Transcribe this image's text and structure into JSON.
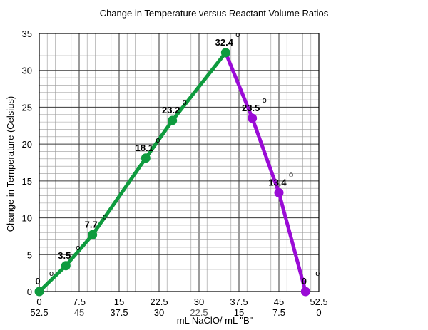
{
  "chart_data": {
    "type": "line",
    "title": "Change in Temperature versus Reactant Volume Ratios",
    "xlabel": "mL NaClO/ mL \"B\"",
    "ylabel": "Change in Temperature (Celsius)",
    "x_ticks_top": [
      "0",
      "7.5",
      "15",
      "22.5",
      "30",
      "37.5",
      "45",
      "52.5"
    ],
    "x_ticks_bottom": [
      "52.5",
      "45",
      "37.5",
      "30",
      "22.5",
      "15",
      "7.5",
      "0"
    ],
    "y_ticks": [
      "0",
      "5",
      "10",
      "15",
      "20",
      "25",
      "30",
      "35"
    ],
    "xlim": [
      0,
      52.5
    ],
    "ylim": [
      0,
      35
    ],
    "grid": true,
    "degree_symbol": "o",
    "series": [
      {
        "color": "#0e9b3e",
        "points": [
          {
            "x": 0,
            "y": 0,
            "label": "0"
          },
          {
            "x": 5,
            "y": 3.5,
            "label": "3.5"
          },
          {
            "x": 10,
            "y": 7.7,
            "label": "7.7"
          },
          {
            "x": 20,
            "y": 18.1,
            "label": "18.1"
          },
          {
            "x": 25,
            "y": 23.2,
            "label": "23.2"
          },
          {
            "x": 35,
            "y": 32.4,
            "label": "32.4"
          }
        ]
      },
      {
        "color": "#9a0bd6",
        "points": [
          {
            "x": 35,
            "y": 32.4,
            "label": "32.4"
          },
          {
            "x": 40,
            "y": 23.5,
            "label": "23.5"
          },
          {
            "x": 45,
            "y": 13.4,
            "label": "13.4"
          },
          {
            "x": 50,
            "y": 0,
            "label": "0"
          }
        ]
      }
    ]
  }
}
